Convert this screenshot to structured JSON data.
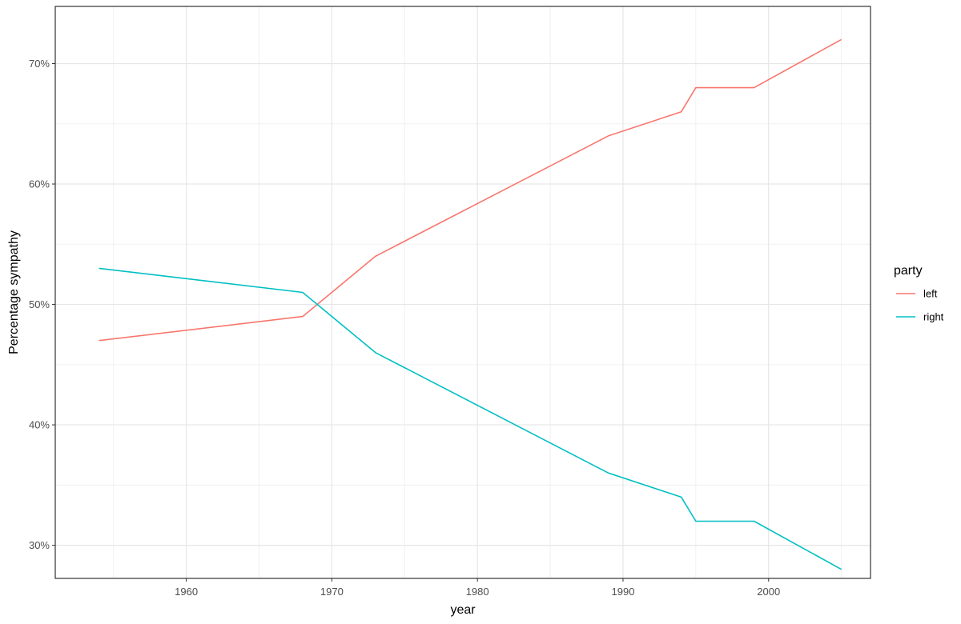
{
  "chart_data": {
    "type": "line",
    "title": "",
    "xlabel": "year",
    "ylabel": "Percentage sympathy",
    "xlim": [
      1951,
      2007
    ],
    "ylim": [
      0.2725,
      0.7475
    ],
    "x_ticks": [
      1960,
      1970,
      1980,
      1990,
      2000
    ],
    "x_minor_ticks": [
      1955,
      1965,
      1975,
      1985,
      1995,
      2005
    ],
    "y_ticks": [
      0.3,
      0.4,
      0.5,
      0.6,
      0.7
    ],
    "y_tick_labels": [
      "30%",
      "40%",
      "50%",
      "60%",
      "70%"
    ],
    "y_minor_ticks": [
      0.35,
      0.45,
      0.55,
      0.65
    ],
    "grid": true,
    "legend": {
      "title": "party",
      "placement": "right"
    },
    "series": [
      {
        "name": "left",
        "color": "#F8766D",
        "x": [
          1954,
          1968,
          1973,
          1989,
          1994,
          1995,
          1999,
          2005
        ],
        "values": [
          0.47,
          0.49,
          0.54,
          0.64,
          0.66,
          0.68,
          0.68,
          0.72
        ]
      },
      {
        "name": "right",
        "color": "#00BFC4",
        "x": [
          1954,
          1968,
          1973,
          1989,
          1994,
          1995,
          1999,
          2005
        ],
        "values": [
          0.53,
          0.51,
          0.46,
          0.36,
          0.34,
          0.32,
          0.32,
          0.28
        ]
      }
    ]
  }
}
